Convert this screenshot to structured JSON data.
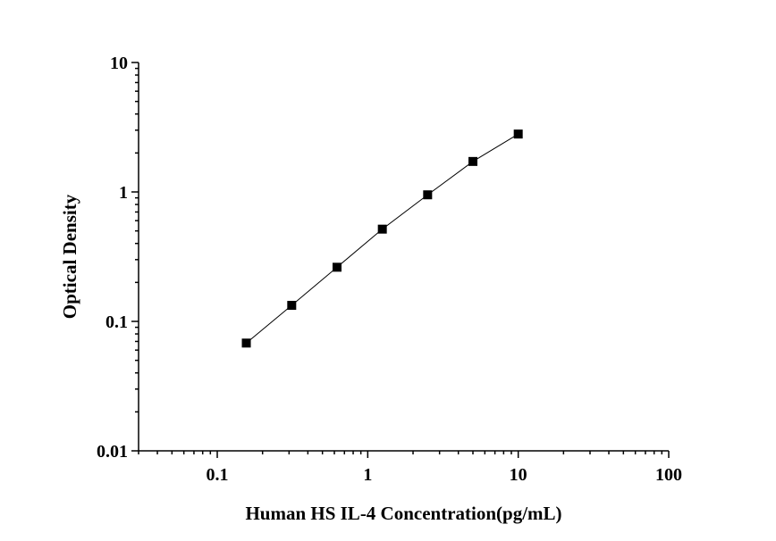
{
  "chart_data": {
    "type": "scatter",
    "xlabel": "Human HS IL-4 Concentration(pg/mL)",
    "ylabel": "Optical Density",
    "x_scale": "log",
    "y_scale": "log",
    "xlim": [
      0.03,
      100
    ],
    "ylim": [
      0.01,
      10
    ],
    "x_ticks": [
      "0.1",
      "1",
      "10",
      "100"
    ],
    "y_ticks": [
      "0.01",
      "0.1",
      "1",
      "10"
    ],
    "grid": false,
    "series": [
      {
        "x": [
          0.156,
          0.3125,
          0.625,
          1.25,
          2.5,
          5,
          10
        ],
        "y": [
          0.068,
          0.133,
          0.262,
          0.516,
          0.95,
          1.72,
          2.8
        ]
      }
    ],
    "marker": "square",
    "line": "connected",
    "colors": {
      "marker": "#000000",
      "line": "#000000"
    }
  }
}
